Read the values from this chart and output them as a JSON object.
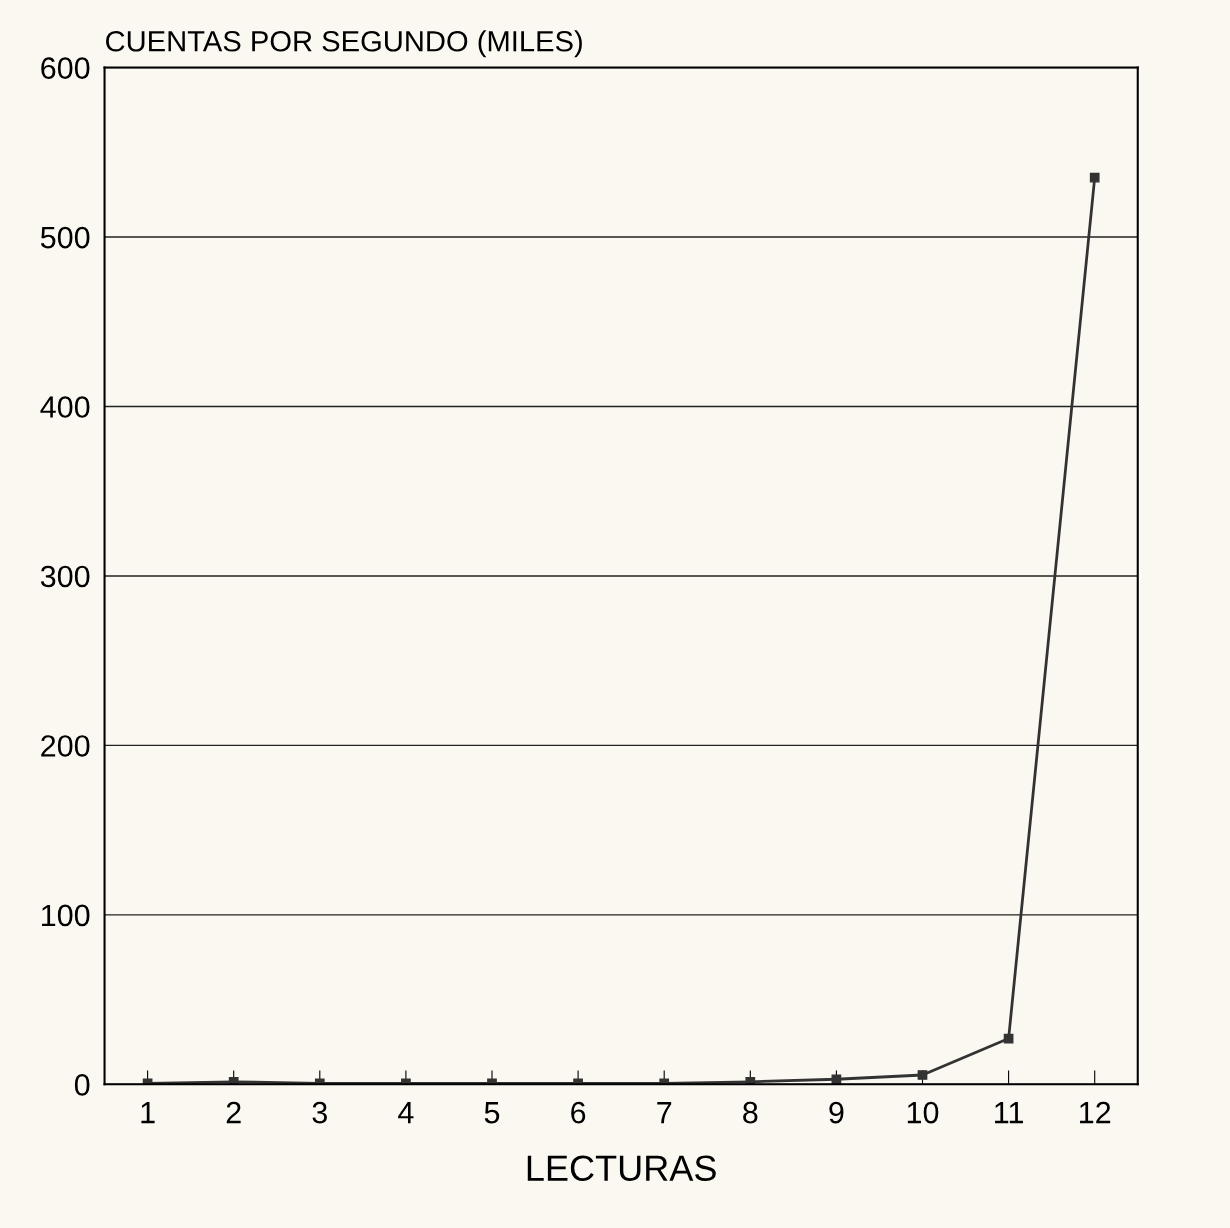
{
  "chart_data": {
    "type": "line",
    "ylabel": "CUENTAS POR SEGUNDO (MILES)",
    "xlabel": "LECTURAS",
    "categories": [
      "1",
      "2",
      "3",
      "4",
      "5",
      "6",
      "7",
      "8",
      "9",
      "10",
      "11",
      "12"
    ],
    "series": [
      {
        "color": "#333333",
        "values": [
          0.5,
          1.5,
          0.5,
          0.5,
          0.5,
          0.5,
          0.5,
          1.5,
          3,
          5.5,
          27,
          535
        ]
      }
    ],
    "ylim": [
      0,
      600
    ],
    "yticks": [
      0,
      100,
      200,
      300,
      400,
      500,
      600
    ],
    "grid": "y",
    "marker": "square",
    "line_style": "solid",
    "legend": false
  }
}
